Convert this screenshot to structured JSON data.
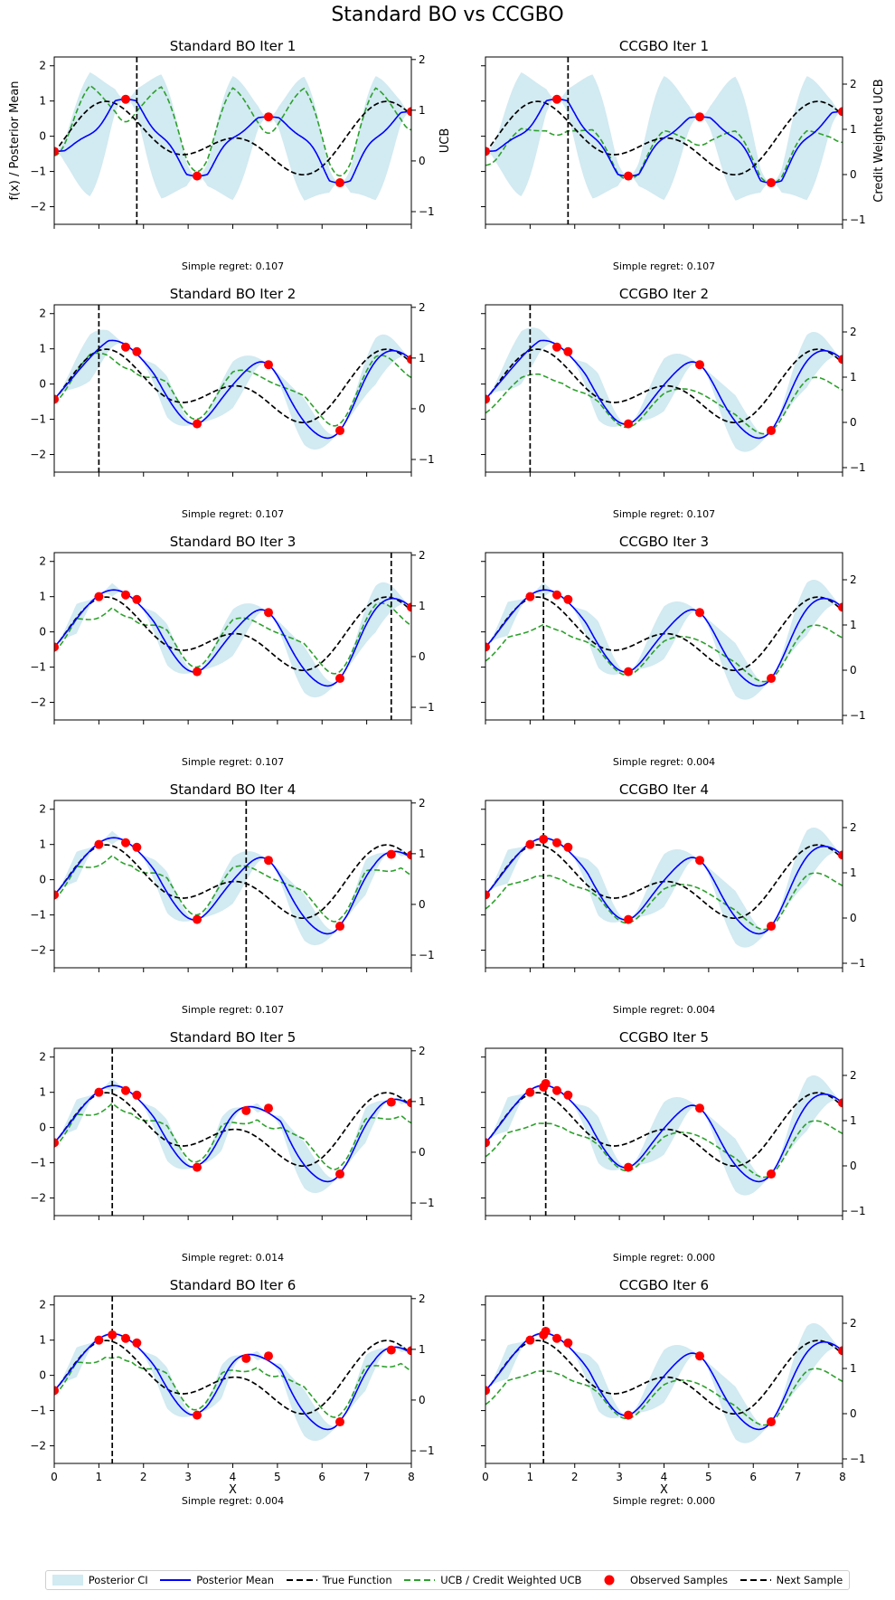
{
  "figure": {
    "suptitle": "Standard BO vs CCGBO",
    "colors": {
      "posterior_ci": "#add8e6",
      "posterior_mean": "#0000ff",
      "true_function": "#000000",
      "ucb": "#2ca02c",
      "observed": "#ff0000",
      "next_sample": "#000000"
    }
  },
  "legend": {
    "posterior_ci": "Posterior CI",
    "posterior_mean": "Posterior Mean",
    "true_function": "True Function",
    "ucb": "UCB / Credit Weighted UCB",
    "observed": "Observed Samples",
    "next_sample": "Next Sample"
  },
  "chart_data": [
    {
      "panel": "std",
      "iter": 1,
      "title": "Standard BO Iter 1",
      "next_sample": 1.85,
      "regret": "Simple regret: 0.107",
      "samples": [
        [
          0,
          -0.43
        ],
        [
          1.6,
          1.05
        ],
        [
          3.2,
          -1.13
        ],
        [
          4.8,
          0.55
        ],
        [
          6.4,
          -1.32
        ],
        [
          8,
          0.7
        ]
      ],
      "ci_mode": "std1"
    },
    {
      "panel": "ccg",
      "iter": 1,
      "title": "CCGBO Iter 1",
      "next_sample": 1.85,
      "regret": "Simple regret: 0.107",
      "samples": [
        [
          0,
          -0.43
        ],
        [
          1.6,
          1.05
        ],
        [
          3.2,
          -1.13
        ],
        [
          4.8,
          0.55
        ],
        [
          6.4,
          -1.32
        ],
        [
          8,
          0.7
        ]
      ],
      "ci_mode": "ccg1"
    },
    {
      "panel": "std",
      "iter": 2,
      "title": "Standard BO Iter 2",
      "next_sample": 1.0,
      "regret": "Simple regret: 0.107",
      "samples": [
        [
          0,
          -0.43
        ],
        [
          1.6,
          1.05
        ],
        [
          1.85,
          0.92
        ],
        [
          3.2,
          -1.13
        ],
        [
          4.8,
          0.55
        ],
        [
          6.4,
          -1.32
        ],
        [
          8,
          0.7
        ]
      ],
      "ci_mode": "std"
    },
    {
      "panel": "ccg",
      "iter": 2,
      "title": "CCGBO Iter 2",
      "next_sample": 1.0,
      "regret": "Simple regret: 0.107",
      "samples": [
        [
          0,
          -0.43
        ],
        [
          1.6,
          1.05
        ],
        [
          1.85,
          0.92
        ],
        [
          3.2,
          -1.13
        ],
        [
          4.8,
          0.55
        ],
        [
          6.4,
          -1.32
        ],
        [
          8,
          0.7
        ]
      ],
      "ci_mode": "ccg"
    },
    {
      "panel": "std",
      "iter": 3,
      "title": "Standard BO Iter 3",
      "next_sample": 7.55,
      "regret": "Simple regret: 0.107",
      "samples": [
        [
          0,
          -0.43
        ],
        [
          1.0,
          1.0
        ],
        [
          1.6,
          1.05
        ],
        [
          1.85,
          0.92
        ],
        [
          3.2,
          -1.13
        ],
        [
          4.8,
          0.55
        ],
        [
          6.4,
          -1.32
        ],
        [
          8,
          0.7
        ]
      ],
      "ci_mode": "std"
    },
    {
      "panel": "ccg",
      "iter": 3,
      "title": "CCGBO Iter 3",
      "next_sample": 1.3,
      "regret": "Simple regret: 0.004",
      "samples": [
        [
          0,
          -0.43
        ],
        [
          1.0,
          1.0
        ],
        [
          1.6,
          1.05
        ],
        [
          1.85,
          0.92
        ],
        [
          3.2,
          -1.13
        ],
        [
          4.8,
          0.55
        ],
        [
          6.4,
          -1.32
        ],
        [
          8,
          0.7
        ]
      ],
      "ci_mode": "ccg"
    },
    {
      "panel": "std",
      "iter": 4,
      "title": "Standard BO Iter 4",
      "next_sample": 4.3,
      "regret": "Simple regret: 0.107",
      "samples": [
        [
          0,
          -0.43
        ],
        [
          1.0,
          1.0
        ],
        [
          1.6,
          1.05
        ],
        [
          1.85,
          0.92
        ],
        [
          3.2,
          -1.13
        ],
        [
          4.8,
          0.55
        ],
        [
          6.4,
          -1.32
        ],
        [
          7.55,
          0.72
        ],
        [
          8,
          0.7
        ]
      ],
      "ci_mode": "std"
    },
    {
      "panel": "ccg",
      "iter": 4,
      "title": "CCGBO Iter 4",
      "next_sample": 1.3,
      "regret": "Simple regret: 0.004",
      "samples": [
        [
          0,
          -0.43
        ],
        [
          1.0,
          1.0
        ],
        [
          1.3,
          1.15
        ],
        [
          1.6,
          1.05
        ],
        [
          1.85,
          0.92
        ],
        [
          3.2,
          -1.13
        ],
        [
          4.8,
          0.55
        ],
        [
          6.4,
          -1.32
        ],
        [
          8,
          0.7
        ]
      ],
      "ci_mode": "ccg"
    },
    {
      "panel": "std",
      "iter": 5,
      "title": "Standard BO Iter 5",
      "next_sample": 1.3,
      "regret": "Simple regret: 0.014",
      "samples": [
        [
          0,
          -0.43
        ],
        [
          1.0,
          1.0
        ],
        [
          1.6,
          1.05
        ],
        [
          1.85,
          0.92
        ],
        [
          3.2,
          -1.13
        ],
        [
          4.3,
          0.48
        ],
        [
          4.8,
          0.55
        ],
        [
          6.4,
          -1.32
        ],
        [
          7.55,
          0.72
        ],
        [
          8,
          0.7
        ]
      ],
      "ci_mode": "std"
    },
    {
      "panel": "ccg",
      "iter": 5,
      "title": "CCGBO Iter 5",
      "next_sample": 1.35,
      "regret": "Simple regret: 0.000",
      "samples": [
        [
          0,
          -0.43
        ],
        [
          1.0,
          1.0
        ],
        [
          1.3,
          1.15
        ],
        [
          1.35,
          1.25
        ],
        [
          1.6,
          1.05
        ],
        [
          1.85,
          0.92
        ],
        [
          3.2,
          -1.13
        ],
        [
          4.8,
          0.55
        ],
        [
          6.4,
          -1.32
        ],
        [
          8,
          0.7
        ]
      ],
      "ci_mode": "ccg"
    },
    {
      "panel": "std",
      "iter": 6,
      "title": "Standard BO Iter 6",
      "next_sample": 1.3,
      "regret": "Simple regret: 0.004",
      "samples": [
        [
          0,
          -0.43
        ],
        [
          1.0,
          1.0
        ],
        [
          1.3,
          1.15
        ],
        [
          1.6,
          1.05
        ],
        [
          1.85,
          0.92
        ],
        [
          3.2,
          -1.13
        ],
        [
          4.3,
          0.48
        ],
        [
          4.8,
          0.55
        ],
        [
          6.4,
          -1.32
        ],
        [
          7.55,
          0.72
        ],
        [
          8,
          0.7
        ]
      ],
      "ci_mode": "std"
    },
    {
      "panel": "ccg",
      "iter": 6,
      "title": "CCGBO Iter 6",
      "next_sample": 1.3,
      "regret": "Simple regret: 0.000",
      "samples": [
        [
          0,
          -0.43
        ],
        [
          1.0,
          1.0
        ],
        [
          1.3,
          1.15
        ],
        [
          1.35,
          1.25
        ],
        [
          1.6,
          1.05
        ],
        [
          1.85,
          0.92
        ],
        [
          3.2,
          -1.13
        ],
        [
          4.8,
          0.55
        ],
        [
          6.4,
          -1.32
        ],
        [
          8,
          0.7
        ]
      ],
      "ci_mode": "ccg"
    }
  ],
  "axes": {
    "xlim": [
      0,
      8
    ],
    "x_ticks": [
      "0",
      "1",
      "2",
      "3",
      "4",
      "5",
      "6",
      "7",
      "8"
    ],
    "x_values": [
      0,
      1,
      2,
      3,
      4,
      5,
      6,
      7,
      8
    ],
    "left_ylim": [
      -2.5,
      2.25
    ],
    "left_ticks": [
      "−2",
      "−1",
      "0",
      "1",
      "2"
    ],
    "left_values": [
      -2,
      -1,
      0,
      1,
      2
    ],
    "std_right_ylim": [
      -1.25,
      2.05
    ],
    "std_right_ticks": [
      "−1",
      "0",
      "1",
      "2"
    ],
    "std_right_values": [
      -1,
      0,
      1,
      2
    ],
    "ccg_right_ylim": [
      -1.1,
      2.6
    ],
    "ccg_right_ticks": [
      "−1",
      "0",
      "1",
      "2"
    ],
    "ccg_right_values": [
      -1,
      0,
      1,
      2
    ],
    "left_ylabel": "f(x) / Posterior Mean",
    "std_right_ylabel": "UCB",
    "ccg_right_ylabel": "Credit Weighted UCB",
    "xlabel": "X"
  }
}
